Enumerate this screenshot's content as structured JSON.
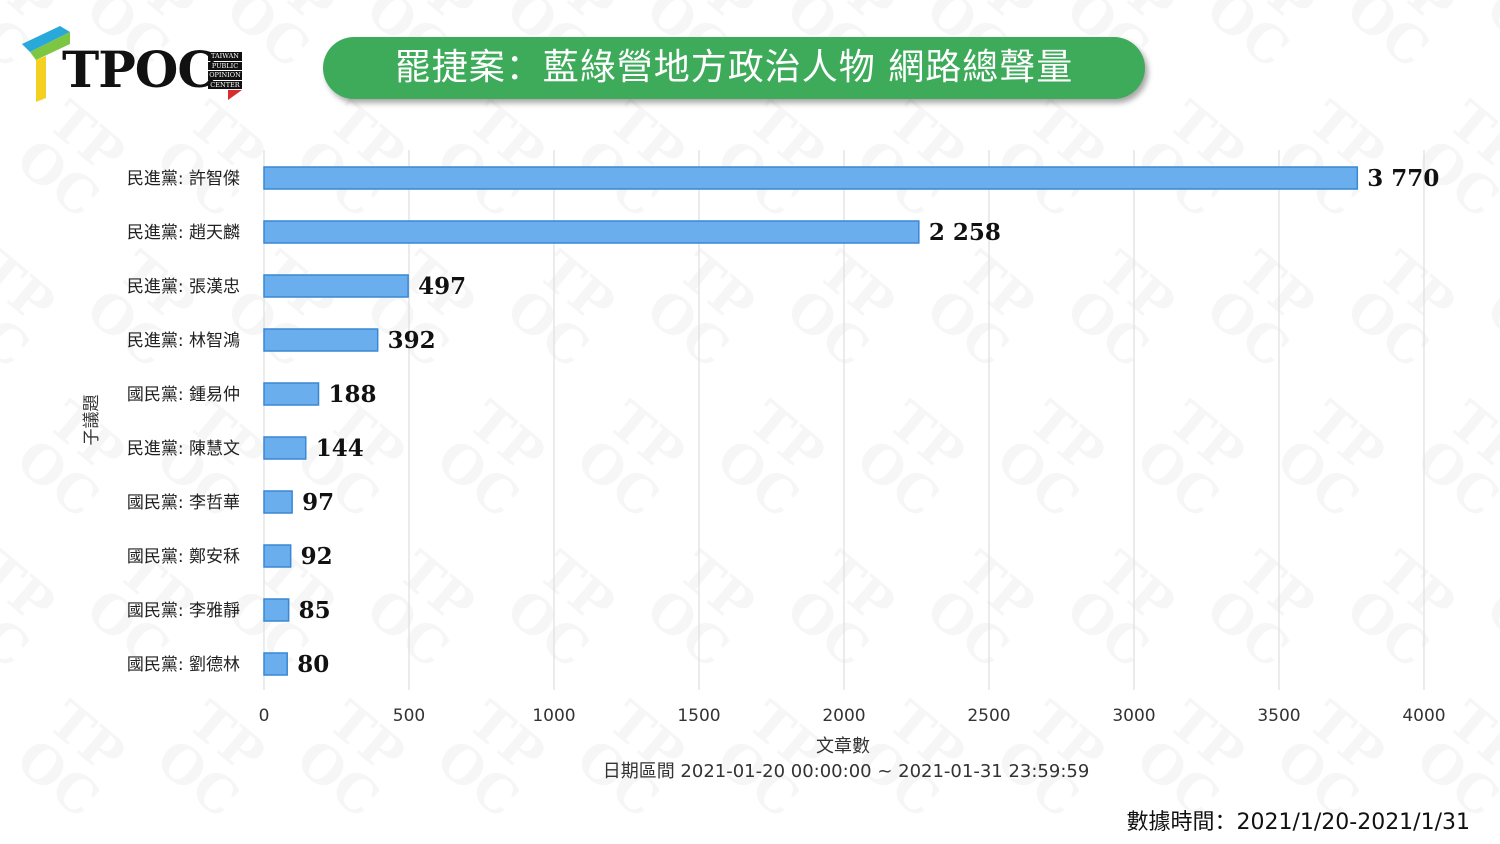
{
  "logo": {
    "text": "TPOC",
    "sub_lines": [
      "TAIWAN",
      "PUBLIC",
      "OPINION",
      "CENTER"
    ]
  },
  "title": "罷捷案：藍綠營地方政治人物 網路總聲量",
  "watermark_text": "TP\nOC",
  "footer": {
    "date_range": "數據時間：2021/1/20-2021/1/31"
  },
  "colors": {
    "bar": "#6aaeed",
    "bar_edge": "#3a87d6",
    "banner": "#3dab5a",
    "grid": "#dedede"
  },
  "chart_data": {
    "type": "bar",
    "orientation": "horizontal",
    "categories": [
      "民進黨: 許智傑",
      "民進黨: 趙天麟",
      "民進黨: 張漢忠",
      "民進黨: 林智鴻",
      "國民黨: 鍾易仲",
      "民進黨: 陳慧文",
      "國民黨: 李哲華",
      "國民黨: 鄭安秝",
      "國民黨: 李雅靜",
      "國民黨: 劉德林"
    ],
    "values": [
      3770,
      2258,
      497,
      392,
      188,
      144,
      97,
      92,
      85,
      80
    ],
    "value_labels": [
      "3 770",
      "2 258",
      "497",
      "392",
      "188",
      "144",
      "97",
      "92",
      "85",
      "80"
    ],
    "xlabel": "文章數",
    "xlabel2": "日期區間 2021-01-20 00:00:00 ~ 2021-01-31 23:59:59",
    "ylabel": "子議題",
    "xlim": [
      0,
      4000
    ],
    "xticks": [
      0,
      500,
      1000,
      1500,
      2000,
      2500,
      3000,
      3500,
      4000
    ],
    "grid": true,
    "legend": "none"
  }
}
